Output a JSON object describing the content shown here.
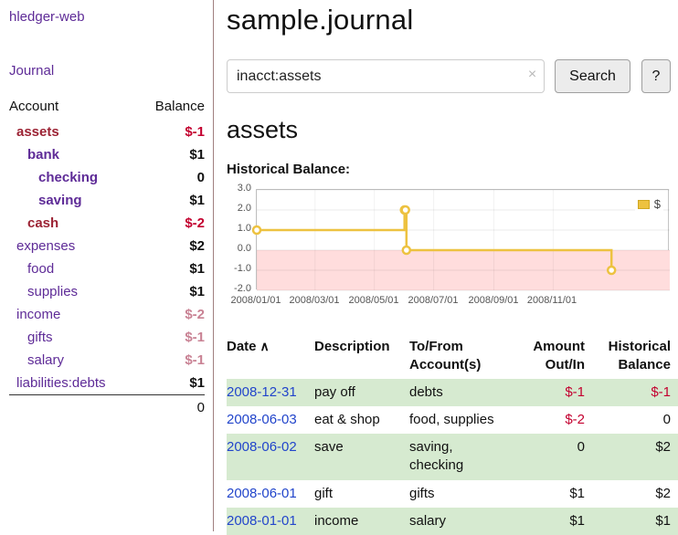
{
  "app": {
    "title": "hledger-web"
  },
  "sidebar": {
    "journal_label": "Journal",
    "accounts": {
      "header_account": "Account",
      "header_balance": "Balance",
      "rows": [
        {
          "name": "assets",
          "balance": "$-1"
        },
        {
          "name": "bank",
          "balance": "$1"
        },
        {
          "name": "checking",
          "balance": "0"
        },
        {
          "name": "saving",
          "balance": "$1"
        },
        {
          "name": "cash",
          "balance": "$-2"
        },
        {
          "name": "expenses",
          "balance": "$2"
        },
        {
          "name": "food",
          "balance": "$1"
        },
        {
          "name": "supplies",
          "balance": "$1"
        },
        {
          "name": "income",
          "balance": "$-2"
        },
        {
          "name": "gifts",
          "balance": "$-1"
        },
        {
          "name": "salary",
          "balance": "$-1"
        },
        {
          "name": "liabilities:debts",
          "balance": "$1"
        }
      ],
      "total": "0"
    }
  },
  "main": {
    "title": "sample.journal",
    "search": {
      "value": "inacct:assets",
      "clear_icon": "×",
      "button_label": "Search",
      "help_label": "?"
    },
    "account_heading": "assets",
    "chart_label": "Historical Balance:"
  },
  "chart_data": {
    "type": "line",
    "title": "Historical Balance",
    "step": true,
    "xlim": [
      "2008-01-01",
      "2009-03-01"
    ],
    "ylim": [
      -2,
      3
    ],
    "yticks": [
      3.0,
      2.0,
      1.0,
      0.0,
      -1.0,
      -2.0
    ],
    "xticks": [
      "2008/01/01",
      "2008/03/01",
      "2008/05/01",
      "2008/07/01",
      "2008/09/01",
      "2008/11/01"
    ],
    "negative_region_color": "#ffdddd",
    "legend_position": "top-right",
    "series": [
      {
        "name": "$",
        "color": "#edc240",
        "points": [
          {
            "x": "2008-01-01",
            "y": 1
          },
          {
            "x": "2008-06-01",
            "y": 2
          },
          {
            "x": "2008-06-02",
            "y": 2
          },
          {
            "x": "2008-06-03",
            "y": 0
          },
          {
            "x": "2008-12-31",
            "y": -1
          }
        ]
      }
    ]
  },
  "register": {
    "sort_indicator": "∧",
    "columns": {
      "date": "Date",
      "description": "Description",
      "tofrom_1": "To/From",
      "tofrom_2": "Account(s)",
      "amount_1": "Amount",
      "amount_2": "Out/In",
      "balance_1": "Historical",
      "balance_2": "Balance"
    },
    "rows": [
      {
        "date": "2008-12-31",
        "description": "pay off",
        "accounts": "debts",
        "amount": "$-1",
        "balance": "$-1"
      },
      {
        "date": "2008-06-03",
        "description": "eat & shop",
        "accounts": "food, supplies",
        "amount": "$-2",
        "balance": "0"
      },
      {
        "date": "2008-06-02",
        "description": "save",
        "accounts": "saving, checking",
        "amount": "0",
        "balance": "$2"
      },
      {
        "date": "2008-06-01",
        "description": "gift",
        "accounts": "gifts",
        "amount": "$1",
        "balance": "$2"
      },
      {
        "date": "2008-01-01",
        "description": "income",
        "accounts": "salary",
        "amount": "$1",
        "balance": "$1"
      }
    ]
  }
}
